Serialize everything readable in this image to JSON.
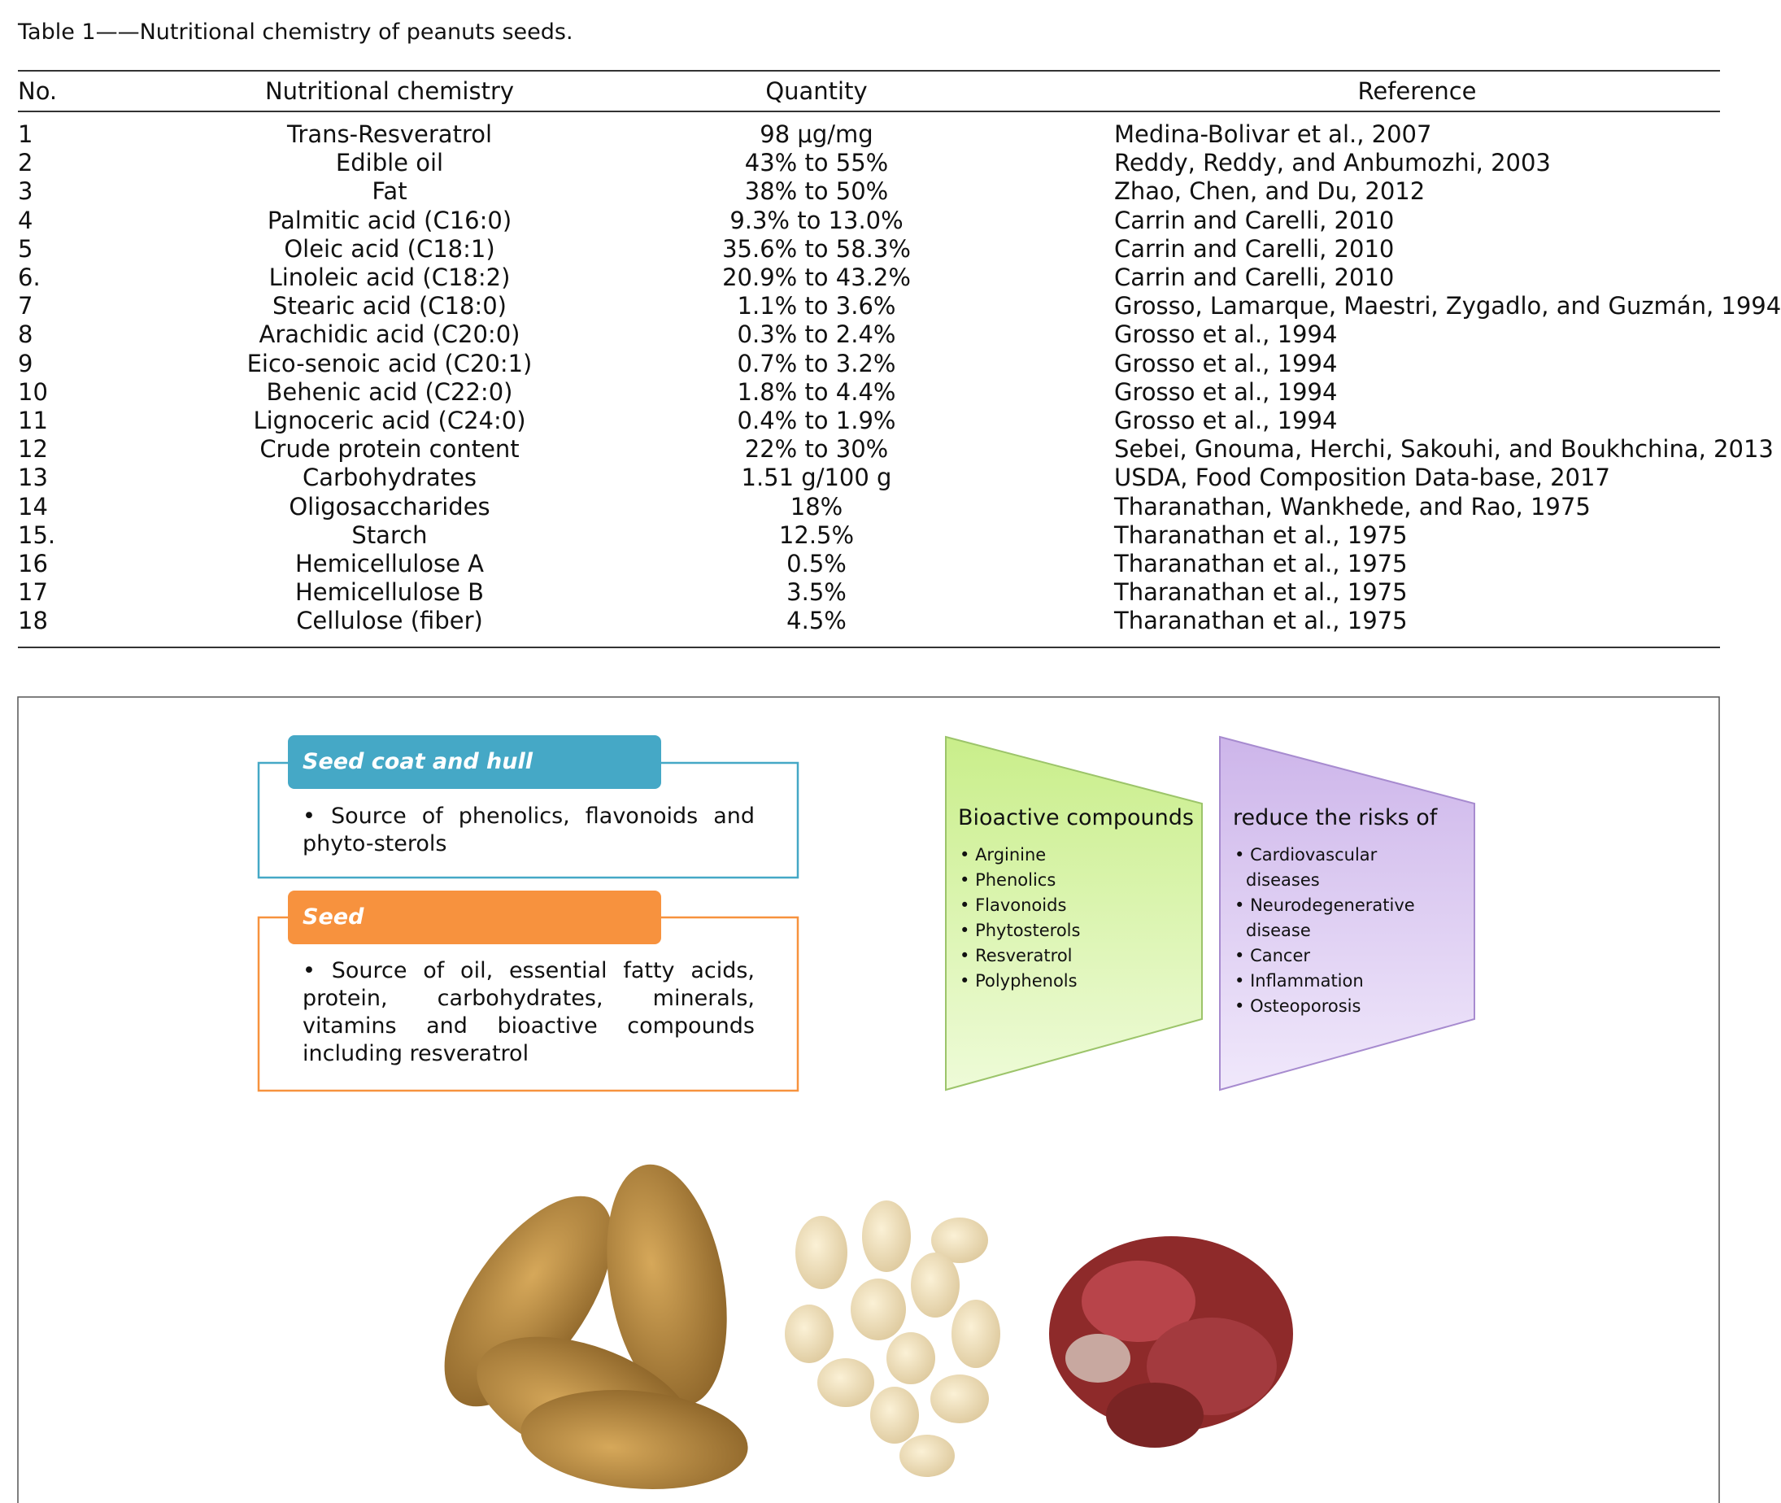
{
  "caption": "Table 1——Nutritional chemistry of peanuts seeds.",
  "table": {
    "header": [
      "No.",
      "Nutritional chemistry",
      "Quantity",
      "Reference"
    ],
    "rows": [
      [
        "1",
        "Trans-Resveratrol",
        "98 μg/mg",
        "Medina-Bolivar et al., 2007"
      ],
      [
        "2",
        "Edible oil",
        "43% to 55%",
        "Reddy, Reddy, and Anbumozhi, 2003"
      ],
      [
        "3",
        "Fat",
        "38% to 50%",
        "Zhao, Chen, and Du, 2012"
      ],
      [
        "4",
        "Palmitic acid (C16:0)",
        "9.3% to 13.0%",
        "Carrin and Carelli, 2010"
      ],
      [
        "5",
        "Oleic acid (C18:1)",
        "35.6% to 58.3%",
        "Carrin and Carelli, 2010"
      ],
      [
        "6.",
        "Linoleic acid (C18:2)",
        "20.9% to 43.2%",
        "Carrin and Carelli, 2010"
      ],
      [
        "7",
        "Stearic acid (C18:0)",
        "1.1% to 3.6%",
        "Grosso, Lamarque, Maestri, Zygadlo, and Guzmán, 1994"
      ],
      [
        "8",
        "Arachidic acid (C20:0)",
        "0.3% to 2.4%",
        "Grosso et al., 1994"
      ],
      [
        "9",
        "Eico-senoic acid (C20:1)",
        "0.7% to 3.2%",
        "Grosso et al., 1994"
      ],
      [
        "10",
        "Behenic acid (C22:0)",
        "1.8% to 4.4%",
        "Grosso et al., 1994"
      ],
      [
        "11",
        "Lignoceric acid (C24:0)",
        "0.4% to 1.9%",
        "Grosso et al., 1994"
      ],
      [
        "12",
        "Crude protein content",
        "22% to 30%",
        "Sebei, Gnouma, Herchi, Sakouhi, and Boukhchina, 2013"
      ],
      [
        "13",
        "Carbohydrates",
        "1.51 g/100 g",
        "USDA, Food Composition Data-base, 2017"
      ],
      [
        "14",
        "Oligosaccharides",
        "18%",
        "Tharanathan, Wankhede, and Rao, 1975"
      ],
      [
        "15.",
        "Starch",
        "12.5%",
        "Tharanathan et al., 1975"
      ],
      [
        "16",
        "Hemicellulose A",
        "0.5%",
        "Tharanathan et al., 1975"
      ],
      [
        "17",
        "Hemicellulose B",
        "3.5%",
        "Tharanathan et al., 1975"
      ],
      [
        "18",
        "Cellulose (fiber)",
        "4.5%",
        "Tharanathan et al., 1975"
      ]
    ]
  },
  "figure": {
    "boxes": [
      {
        "title": "Seed coat and hull",
        "text": "Source of phenolics, flavonoids and phyto-sterols"
      },
      {
        "title": "Seed",
        "text": "Source of oil, essential fatty acids, protein, carbohydrates, minerals, vitamins and bioactive compounds including resveratrol"
      }
    ],
    "panels": [
      {
        "title": "Bioactive compounds",
        "items": [
          "Arginine",
          "Phenolics",
          "Flavonoids",
          "Phytosterols",
          "Resveratrol",
          "Polyphenols"
        ]
      },
      {
        "title": "reduce the risks of",
        "items": [
          "Cardiovascular diseases",
          "Neurodegenerative disease",
          "Cancer",
          "Inflammation",
          "Osteoporosis"
        ]
      }
    ]
  }
}
